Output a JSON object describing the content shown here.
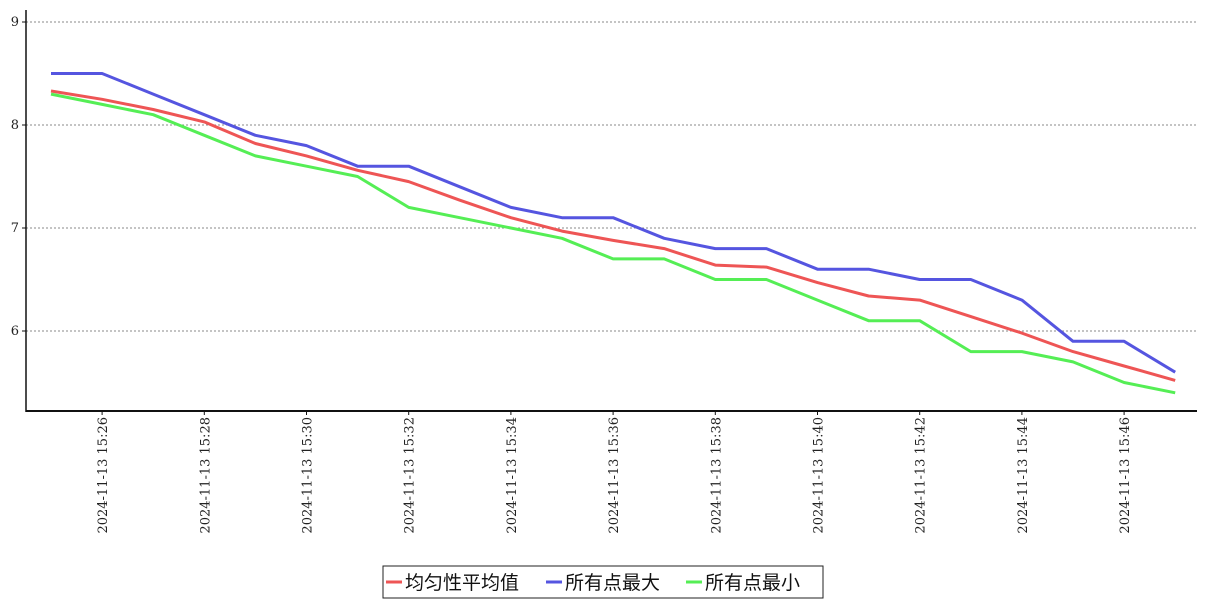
{
  "chart_data": {
    "type": "line",
    "x": [
      "2024-11-13 15:25",
      "2024-11-13 15:26",
      "2024-11-13 15:27",
      "2024-11-13 15:28",
      "2024-11-13 15:29",
      "2024-11-13 15:30",
      "2024-11-13 15:31",
      "2024-11-13 15:32",
      "2024-11-13 15:33",
      "2024-11-13 15:34",
      "2024-11-13 15:35",
      "2024-11-13 15:36",
      "2024-11-13 15:37",
      "2024-11-13 15:38",
      "2024-11-13 15:39",
      "2024-11-13 15:40",
      "2024-11-13 15:41",
      "2024-11-13 15:42",
      "2024-11-13 15:43",
      "2024-11-13 15:44",
      "2024-11-13 15:45",
      "2024-11-13 15:46",
      "2024-11-13 15:47"
    ],
    "x_tick_labels": [
      "2024-11-13 15:26",
      "2024-11-13 15:28",
      "2024-11-13 15:30",
      "2024-11-13 15:32",
      "2024-11-13 15:34",
      "2024-11-13 15:36",
      "2024-11-13 15:38",
      "2024-11-13 15:40",
      "2024-11-13 15:42",
      "2024-11-13 15:44",
      "2024-11-13 15:46"
    ],
    "y_ticks": [
      6,
      7,
      8,
      9
    ],
    "ylim": [
      5.15,
      9.1
    ],
    "grid": "horizontal dashed",
    "legend_position": "bottom-center",
    "series": [
      {
        "name": "均匀性平均值",
        "color": "#ee5555",
        "values": [
          8.33,
          8.25,
          8.15,
          8.03,
          7.82,
          7.7,
          7.56,
          7.45,
          7.27,
          7.1,
          6.97,
          6.88,
          6.8,
          6.64,
          6.62,
          6.47,
          6.34,
          6.3,
          6.14,
          5.98,
          5.8,
          5.66,
          5.52
        ]
      },
      {
        "name": "所有点最大",
        "color": "#5555e0",
        "values": [
          8.5,
          8.5,
          8.3,
          8.1,
          7.9,
          7.8,
          7.6,
          7.6,
          7.4,
          7.2,
          7.1,
          7.1,
          6.9,
          6.8,
          6.8,
          6.6,
          6.6,
          6.5,
          6.5,
          6.3,
          5.9,
          5.9,
          5.6
        ]
      },
      {
        "name": "所有点最小",
        "color": "#55ee55",
        "values": [
          8.3,
          8.2,
          8.1,
          7.9,
          7.7,
          7.6,
          7.5,
          7.2,
          7.1,
          7.0,
          6.9,
          6.7,
          6.7,
          6.5,
          6.5,
          6.3,
          6.1,
          6.1,
          5.8,
          5.8,
          5.7,
          5.5,
          5.4
        ]
      }
    ]
  }
}
